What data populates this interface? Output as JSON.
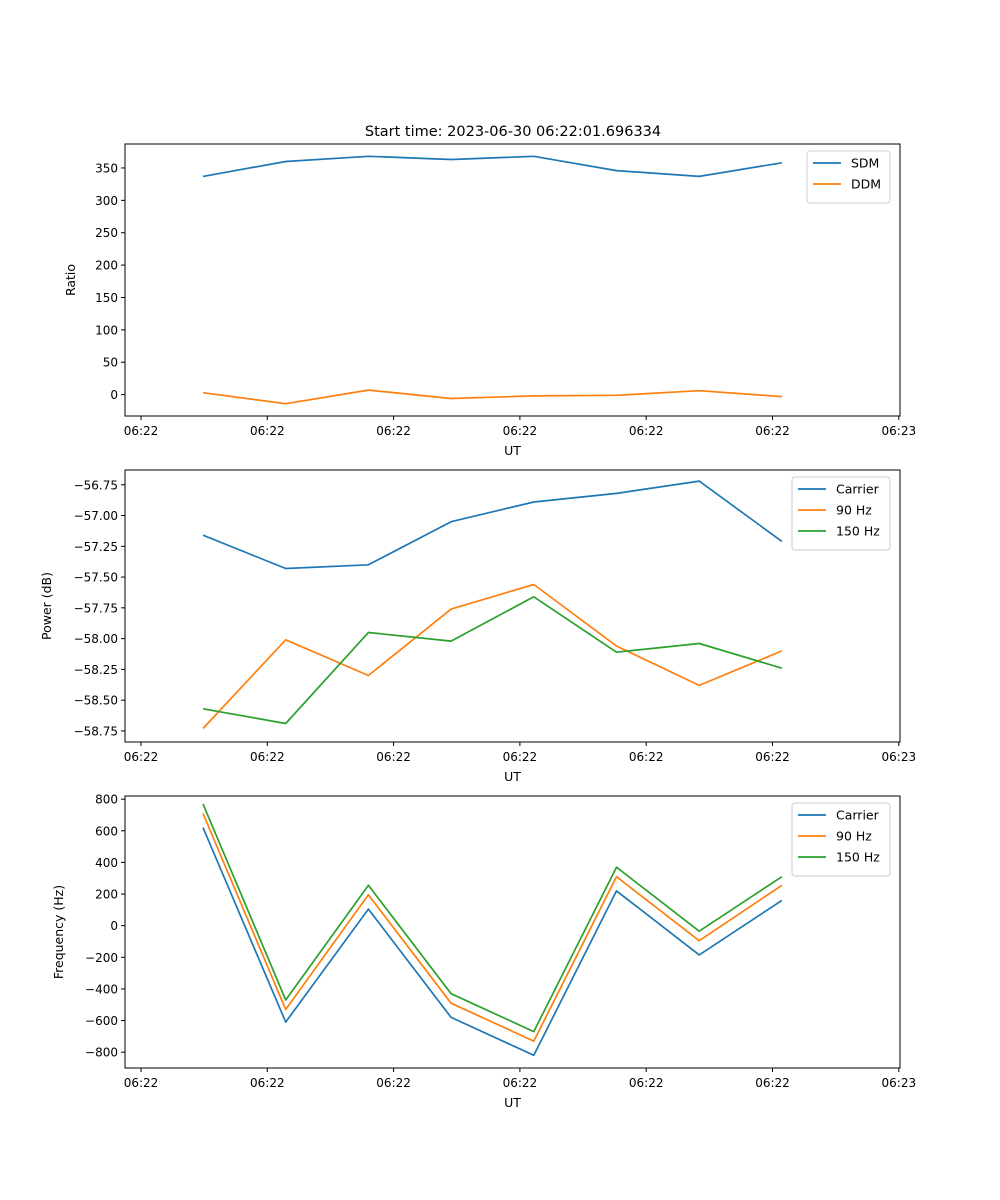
{
  "figure_title": "Start time: 2023-06-30 06:22:01.696334",
  "colors": {
    "blue": "#1f77b4",
    "orange": "#ff7f0e",
    "green": "#2ca02c"
  },
  "chart_data": [
    {
      "type": "line",
      "title": "Start time: 2023-06-30 06:22:01.696334",
      "xlabel": "UT",
      "ylabel": "Ratio",
      "x_tick_labels": [
        "06:22",
        "06:22",
        "06:22",
        "06:22",
        "06:22",
        "06:22",
        "06:23"
      ],
      "y_ticks": [
        "0",
        "50",
        "100",
        "150",
        "200",
        "250",
        "300",
        "350"
      ],
      "ylim": [
        -33,
        387
      ],
      "legend_position": "upper right",
      "series": [
        {
          "name": "SDM",
          "color": "#1f77b4",
          "values": [
            337,
            360,
            368,
            363,
            368,
            346,
            337,
            358
          ]
        },
        {
          "name": "DDM",
          "color": "#ff7f0e",
          "values": [
            3,
            -14,
            7,
            -6,
            -2,
            -1,
            6,
            -3
          ]
        }
      ]
    },
    {
      "type": "line",
      "title": "",
      "xlabel": "UT",
      "ylabel": "Power (dB)",
      "x_tick_labels": [
        "06:22",
        "06:22",
        "06:22",
        "06:22",
        "06:22",
        "06:22",
        "06:23"
      ],
      "y_ticks": [
        "−58.75",
        "−58.50",
        "−58.25",
        "−58.00",
        "−57.75",
        "−57.50",
        "−57.25",
        "−57.00",
        "−56.75"
      ],
      "ylim": [
        -58.84,
        -56.63
      ],
      "legend_position": "upper right",
      "series": [
        {
          "name": "Carrier",
          "color": "#1f77b4",
          "values": [
            -57.16,
            -57.43,
            -57.4,
            -57.05,
            -56.89,
            -56.82,
            -56.72,
            -57.21
          ]
        },
        {
          "name": "90 Hz",
          "color": "#ff7f0e",
          "values": [
            -58.73,
            -58.01,
            -58.3,
            -57.76,
            -57.56,
            -58.06,
            -58.38,
            -58.1
          ]
        },
        {
          "name": "150 Hz",
          "color": "#2ca02c",
          "values": [
            -58.57,
            -58.69,
            -57.95,
            -58.02,
            -57.66,
            -58.11,
            -58.04,
            -58.24
          ]
        }
      ]
    },
    {
      "type": "line",
      "title": "",
      "xlabel": "UT",
      "ylabel": "Frequency (Hz)",
      "x_tick_labels": [
        "06:22",
        "06:22",
        "06:22",
        "06:22",
        "06:22",
        "06:22",
        "06:23"
      ],
      "y_ticks": [
        "−800",
        "−600",
        "−400",
        "−200",
        "0",
        "200",
        "400",
        "600",
        "800"
      ],
      "ylim": [
        -900,
        820
      ],
      "legend_position": "upper right",
      "series": [
        {
          "name": "Carrier",
          "color": "#1f77b4",
          "values": [
            620,
            -610,
            105,
            -580,
            -820,
            220,
            -185,
            160
          ]
        },
        {
          "name": "90 Hz",
          "color": "#ff7f0e",
          "values": [
            710,
            -530,
            195,
            -490,
            -730,
            310,
            -95,
            255
          ]
        },
        {
          "name": "150 Hz",
          "color": "#2ca02c",
          "values": [
            770,
            -470,
            255,
            -430,
            -670,
            370,
            -35,
            310
          ]
        }
      ]
    }
  ]
}
